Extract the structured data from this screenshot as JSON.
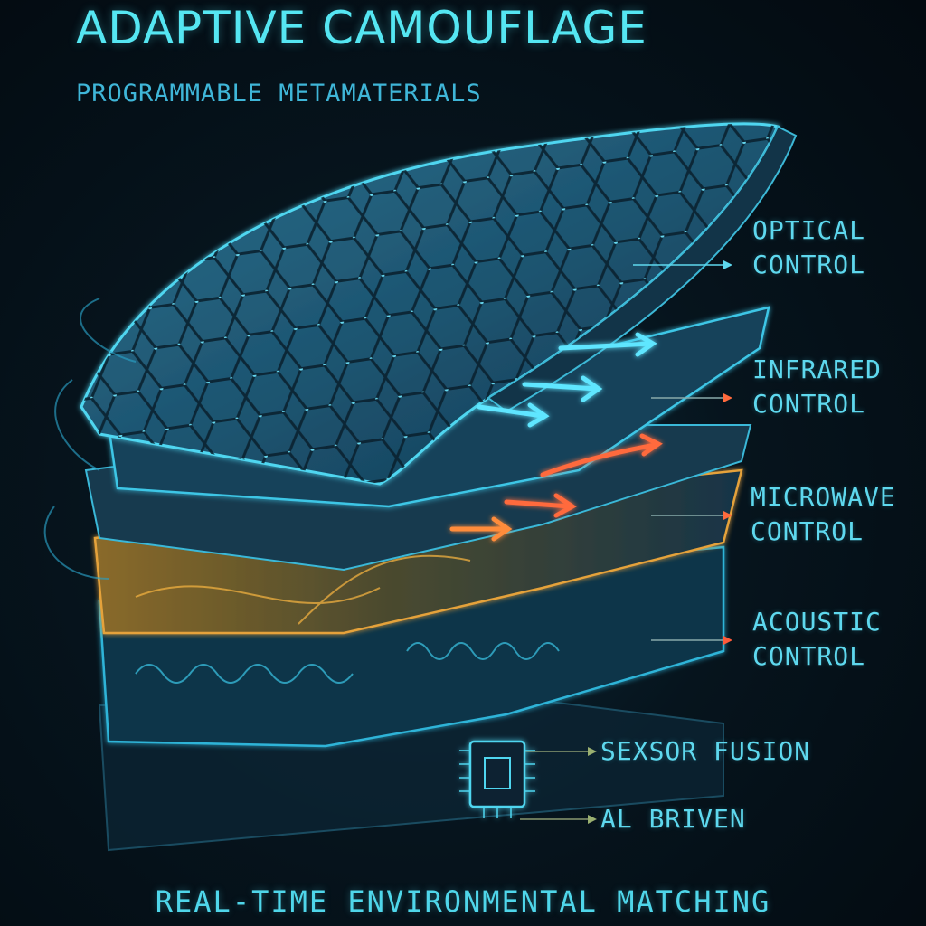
{
  "header": {
    "title": "ADAPTIVE CAMOUFLAGE",
    "subtitle": "PROGRAMMABLE METAMATERIALS"
  },
  "layers": [
    {
      "line1": "OPTICAL",
      "line2": "CONTROL",
      "color": "#4fd8f0"
    },
    {
      "line1": "INFRARED",
      "line2": "CONTROL",
      "color": "#ff6a3d"
    },
    {
      "line1": "MICROWAVE",
      "line2": "CONTROL",
      "color": "#ff6a3d"
    },
    {
      "line1": "ACOUSTIC",
      "line2": "CONTROL",
      "color": "#ff5a3a"
    }
  ],
  "processor": {
    "sensor_label": "SEXSOR FUSION",
    "ai_label": "AL BRIVEN",
    "icon": "chip-icon"
  },
  "footer": "REAL-TIME ENVIRONMENTAL MATCHING",
  "colors": {
    "accent": "#55e6f2",
    "heat": "#ff6a3d",
    "amber": "#e5a23a",
    "background": "#04101a"
  }
}
